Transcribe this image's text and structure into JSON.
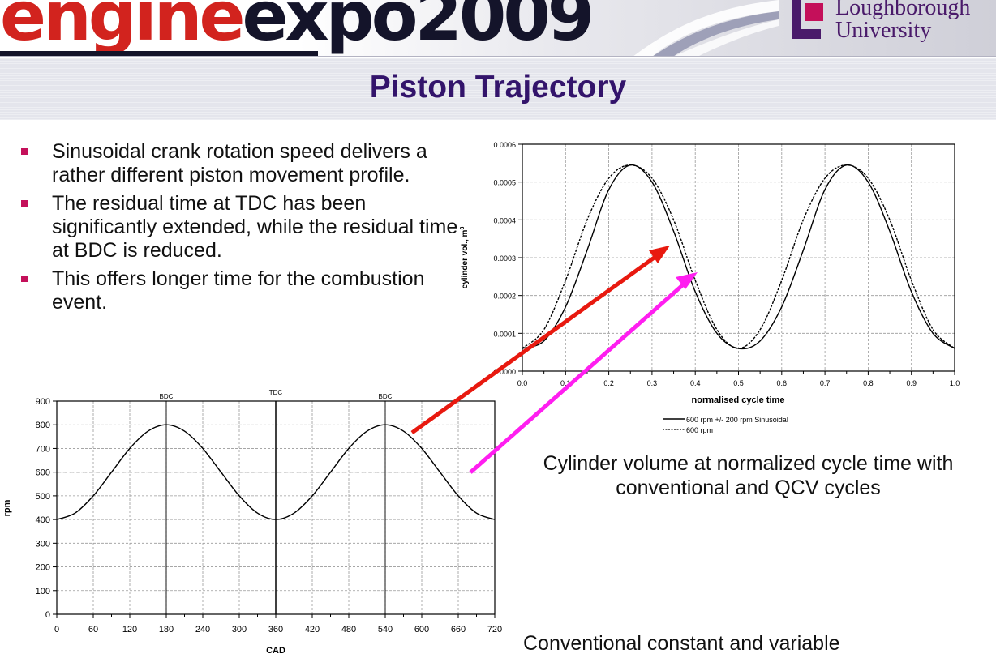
{
  "header": {
    "expo_logo_red": "engine",
    "expo_logo_dark": "expo2009",
    "university_line1": "Loughborough",
    "university_line2": "University"
  },
  "title": "Piston Trajectory",
  "bullets": [
    "Sinusoidal crank rotation speed delivers a rather different piston movement profile.",
    "The residual time at TDC has been significantly extended, while the residual time at BDC is reduced.",
    "This offers longer time for the combustion event."
  ],
  "captions": {
    "volume": "Cylinder volume at normalized cycle time with conventional and QCV cycles",
    "speed": "Conventional constant and variable"
  },
  "colors": {
    "title": "#33146b",
    "bullet_marker": "#c4105a",
    "arrow_red": "#e8190f",
    "arrow_magenta": "#ff1ef0",
    "logo_red": "#d2231e"
  },
  "chart_data": [
    {
      "type": "line",
      "xlabel": "normalised cycle time",
      "ylabel": "cylinder vol., m",
      "ylabel_superscript": "3",
      "xlim": [
        0,
        1.0
      ],
      "ylim": [
        0,
        0.0006
      ],
      "x_ticks": [
        "0.0",
        "0.1",
        "0.2",
        "0.3",
        "0.4",
        "0.5",
        "0.6",
        "0.7",
        "0.8",
        "0.9",
        "1.0"
      ],
      "y_ticks": [
        "0.0000",
        "0.0001",
        "0.0002",
        "0.0003",
        "0.0004",
        "0.0005",
        "0.0006"
      ],
      "grid": true,
      "legend_position": "bottom",
      "series": [
        {
          "name": "600 rpm +/- 200 rpm Sinusoidal",
          "style": "solid",
          "x": [
            0,
            0.05,
            0.1,
            0.15,
            0.2,
            0.25,
            0.3,
            0.35,
            0.4,
            0.45,
            0.5,
            0.55,
            0.6,
            0.65,
            0.7,
            0.75,
            0.8,
            0.85,
            0.9,
            0.95,
            1.0
          ],
          "values": [
            6e-05,
            8e-05,
            0.00017,
            0.00032,
            0.00048,
            0.000545,
            0.0005,
            0.00037,
            0.00021,
            0.0001,
            6e-05,
            8e-05,
            0.00017,
            0.00032,
            0.00048,
            0.000545,
            0.0005,
            0.00037,
            0.00021,
            0.0001,
            6e-05
          ]
        },
        {
          "name": "600 rpm",
          "style": "dashed",
          "x": [
            0,
            0.05,
            0.1,
            0.15,
            0.2,
            0.25,
            0.3,
            0.35,
            0.4,
            0.45,
            0.5,
            0.55,
            0.6,
            0.65,
            0.7,
            0.75,
            0.8,
            0.85,
            0.9,
            0.95,
            1.0
          ],
          "values": [
            6e-05,
            0.00011,
            0.00024,
            0.0004,
            0.00051,
            0.000545,
            0.00051,
            0.0004,
            0.00024,
            0.00011,
            6e-05,
            0.00011,
            0.00024,
            0.0004,
            0.00051,
            0.000545,
            0.00051,
            0.0004,
            0.00024,
            0.00011,
            6e-05
          ]
        }
      ]
    },
    {
      "type": "line",
      "xlabel": "CAD",
      "ylabel": "rpm",
      "xlim": [
        0,
        720
      ],
      "ylim": [
        0,
        900
      ],
      "x_ticks": [
        "0",
        "60",
        "120",
        "180",
        "240",
        "300",
        "360",
        "420",
        "480",
        "540",
        "600",
        "660",
        "720"
      ],
      "y_ticks": [
        "0",
        "100",
        "200",
        "300",
        "400",
        "500",
        "600",
        "700",
        "800",
        "900"
      ],
      "grid": true,
      "annotations": [
        {
          "label": "BDC",
          "x": 180
        },
        {
          "label": "TDC",
          "x": 360
        },
        {
          "label": "BDC",
          "x": 540
        }
      ],
      "reference_line": 600,
      "series": [
        {
          "x": [
            0,
            30,
            60,
            90,
            120,
            150,
            180,
            210,
            240,
            270,
            300,
            330,
            360,
            390,
            420,
            450,
            480,
            510,
            540,
            570,
            600,
            630,
            660,
            690,
            720
          ],
          "values": [
            400,
            427,
            500,
            600,
            700,
            773,
            800,
            773,
            700,
            600,
            500,
            427,
            400,
            427,
            500,
            600,
            700,
            773,
            800,
            773,
            700,
            600,
            500,
            427,
            400
          ]
        }
      ]
    }
  ]
}
